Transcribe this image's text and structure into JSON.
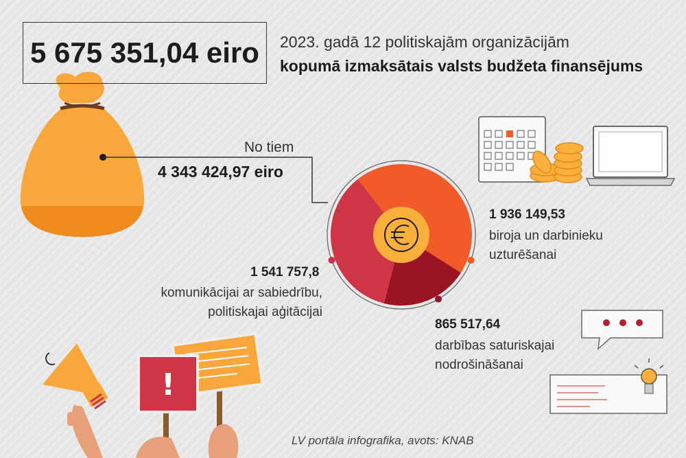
{
  "header": {
    "total_amount": "5 675 351,04 eiro",
    "title_line1": "2023. gadā 12 politiskajām organizācijām",
    "title_line2": "kopumā izmaksātais valsts budžeta finansējums"
  },
  "subtotal": {
    "label": "No tiem",
    "amount": "4 343 424,97 eiro"
  },
  "chart_data": {
    "type": "pie",
    "title": "",
    "slices": [
      {
        "value": 1936149.53,
        "value_label": "1 936 149,53",
        "label_lines": [
          "biroja un darbinieku",
          "uzturēšanai"
        ],
        "color": "#f15a29"
      },
      {
        "value": 865517.64,
        "value_label": "865 517,64",
        "label_lines": [
          "darbības saturiskajai",
          "nodrošināšanai"
        ],
        "color": "#9a1423"
      },
      {
        "value": 1541757.8,
        "value_label": "1 541 757,8",
        "label_lines": [
          "komunikācijai ar sabiedrību,",
          "politiskajai aģitācijai"
        ],
        "color": "#d03545"
      }
    ],
    "center_icon": "euro-icon"
  },
  "footer": {
    "source": "LV portāla infografika, avots: KNAB"
  },
  "colors": {
    "bag": "#f9a73b",
    "bag_bottom": "#ef8a1d",
    "euro_circle": "#fbb03b",
    "text": "#1c1c1c"
  }
}
